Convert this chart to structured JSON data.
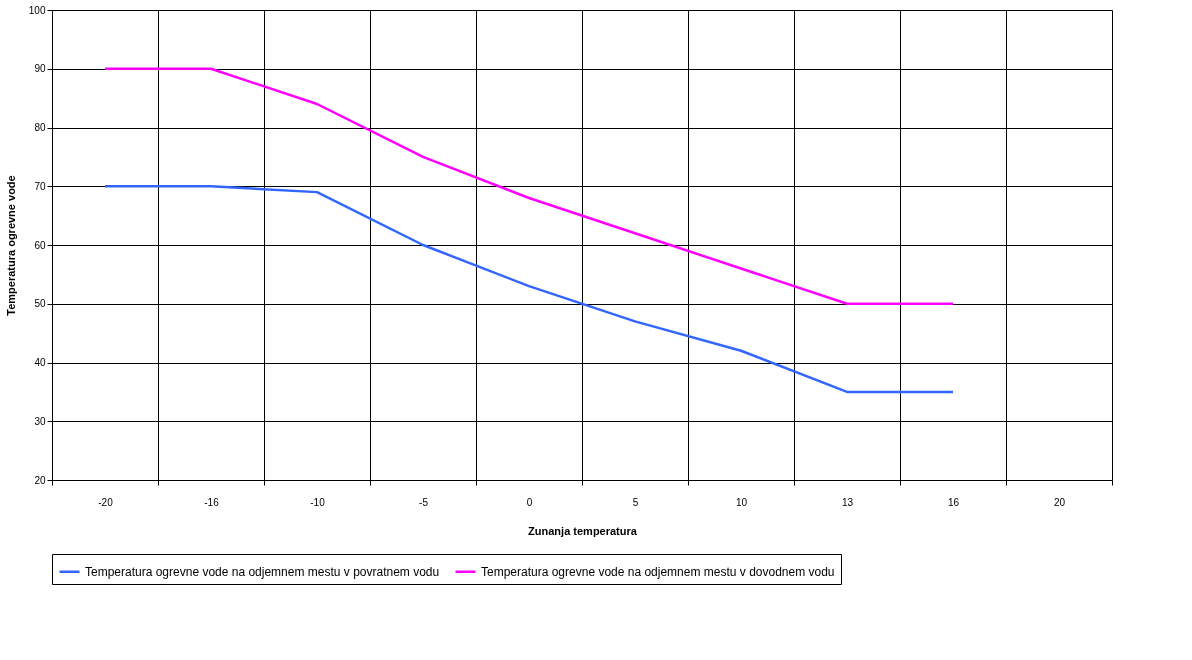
{
  "chart_data": {
    "type": "line",
    "xlabel": "Zunanja temperatura",
    "ylabel": "Temperatura ogrevne vode",
    "categories": [
      "-20",
      "-16",
      "-10",
      "-5",
      "0",
      "5",
      "10",
      "13",
      "16",
      "20"
    ],
    "series": [
      {
        "name": "Temperatura ogrevne vode na odjemnem mestu v povratnem vodu",
        "color": "#3366ff",
        "values": [
          70,
          70,
          69,
          60,
          53,
          47,
          42,
          35,
          35,
          null
        ]
      },
      {
        "name": "Temperatura ogrevne vode na odjemnem mestu v dovodnem vodu",
        "color": "#ff00ff",
        "values": [
          90,
          90,
          84,
          75,
          68,
          62,
          56,
          50,
          50,
          null
        ]
      }
    ],
    "ylim": [
      20,
      100
    ],
    "yticks": [
      20,
      30,
      40,
      50,
      60,
      70,
      80,
      90,
      100
    ],
    "grid": true,
    "legend": "bottom",
    "marker": "none",
    "line_style": "solid"
  }
}
